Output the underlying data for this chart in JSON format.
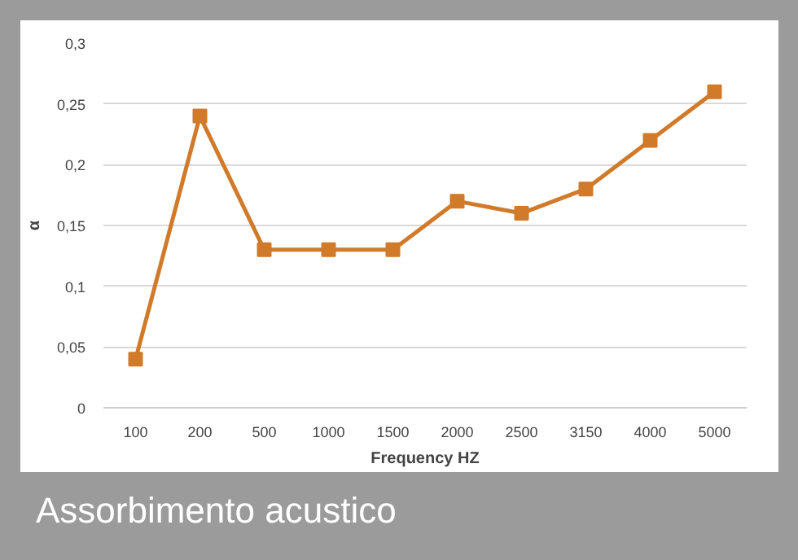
{
  "chart_data": {
    "type": "line",
    "title": "Assorbimento acustico",
    "xlabel": "Frequency HZ",
    "ylabel": "α",
    "categories": [
      "100",
      "200",
      "500",
      "1000",
      "1500",
      "2000",
      "2500",
      "3150",
      "4000",
      "5000"
    ],
    "series": [
      {
        "color": "#d07a2a",
        "values": [
          0.04,
          0.24,
          0.13,
          0.13,
          0.13,
          0.17,
          0.16,
          0.18,
          0.22,
          0.26
        ]
      }
    ],
    "ylim": [
      0,
      0.3
    ],
    "yticks": [
      0,
      {
        "value": 0.05,
        "label": "0,05"
      },
      {
        "value": 0.1,
        "label": "0,1"
      },
      {
        "value": 0.15,
        "label": "0,15"
      },
      {
        "value": 0.2,
        "label": "0,2"
      },
      {
        "value": 0.25,
        "label": "0,25"
      },
      {
        "value": 0.3,
        "label": "0,3"
      }
    ],
    "grid": "y",
    "marker": "square",
    "line_style": "solid"
  }
}
